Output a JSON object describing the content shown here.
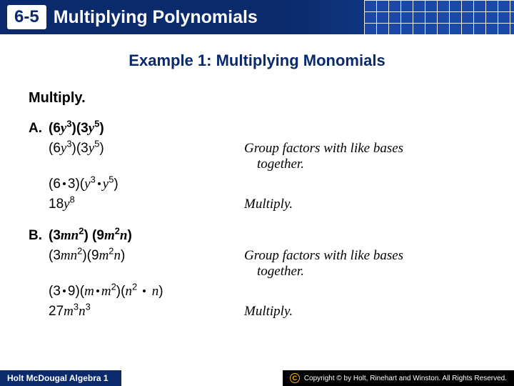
{
  "header": {
    "section_number": "6-5",
    "section_title": "Multiplying Polynomials",
    "banner_bg_left": "#0a2a6b",
    "banner_bg_right": "#1b4aa8",
    "badge_bg": "#ffffff",
    "badge_fg": "#0a2a6b"
  },
  "example_title": "Example 1: Multiplying Monomials",
  "instruction": "Multiply.",
  "problems": {
    "A": {
      "letter": "A.",
      "given_html": "(6<span class='var'>y</span><span class='sup'>3</span>)(3<span class='var'>y</span><span class='sup'>5</span>)",
      "steps": [
        {
          "expr_html": "(6<span class='var'>y</span><span class='sup'>3</span>)(3<span class='var'>y</span><span class='sup'>5</span>)",
          "note_lines": [
            "Group factors with like bases",
            "together."
          ]
        },
        {
          "expr_html": "(6<span class='dot'></span>3)(<span class='var'>y</span><span class='sup'>3</span><span class='dot'></span><span class='var'>y</span><span class='sup'>5</span>)",
          "note_lines": []
        },
        {
          "expr_html": "18<span class='var'>y</span><span class='sup'>8</span>",
          "note_lines": [
            "Multiply."
          ]
        }
      ]
    },
    "B": {
      "letter": "B.",
      "given_html": "(3<span class='var'>mn</span><span class='sup'>2</span>) (9<span class='var'>m</span><span class='sup'>2</span><span class='var'>n</span>)",
      "steps": [
        {
          "expr_html": "(3<span class='var'>mn</span><span class='sup'>2</span>)(9<span class='var'>m</span><span class='sup'>2</span><span class='var'>n</span>)",
          "note_lines": [
            "Group factors with like bases",
            "together."
          ]
        },
        {
          "expr_html": "(3<span class='dot'></span>9)(<span class='var'>m</span><span class='dot'></span><span class='var'>m</span><span class='sup'>2</span>)(<span class='var'>n</span><span class='sup'>2</span> <span class='dot'></span> <span class='var'>n</span>)",
          "note_lines": []
        },
        {
          "expr_html": "27<span class='var'>m</span><span class='sup'>3</span><span class='var'>n</span><span class='sup'>3</span>",
          "note_lines": [
            "Multiply."
          ]
        }
      ]
    }
  },
  "footer": {
    "left": "Holt McDougal Algebra 1",
    "right": "Copyright © by Holt, Rinehart and Winston. All Rights Reserved.",
    "left_bg": "#0a2a6b",
    "right_bg": "#000000"
  }
}
